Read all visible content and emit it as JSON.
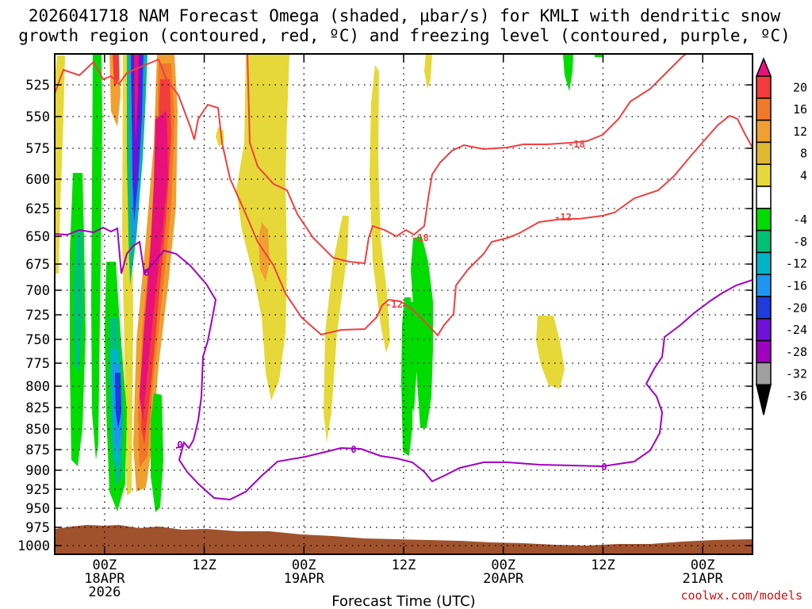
{
  "chart_data": {
    "type": "heatmap",
    "title_line1": "2026041718 NAM Forecast Omega (shaded, μbar/s) for KMLI with dendritic snow",
    "title_line2": "growth region (contoured, red, ºC) and freezing level (contoured, purple, ºC)",
    "xlabel": "Forecast Time (UTC)",
    "credit": "coolwx.com/models",
    "y_axis": {
      "reversed": true,
      "ticks": [
        525,
        550,
        575,
        600,
        625,
        650,
        675,
        700,
        725,
        750,
        775,
        800,
        825,
        850,
        875,
        900,
        925,
        950,
        975,
        1000
      ]
    },
    "x_ticks": [
      {
        "hour": 0,
        "line1": "00Z",
        "line2": "18APR",
        "line3": "2026"
      },
      {
        "hour": 12,
        "line1": "12Z",
        "line2": "",
        "line3": ""
      },
      {
        "hour": 24,
        "line1": "00Z",
        "line2": "19APR",
        "line3": ""
      },
      {
        "hour": 36,
        "line1": "12Z",
        "line2": "",
        "line3": ""
      },
      {
        "hour": 48,
        "line1": "00Z",
        "line2": "20APR",
        "line3": ""
      },
      {
        "hour": 60,
        "line1": "12Z",
        "line2": "",
        "line3": ""
      },
      {
        "hour": 72,
        "line1": "00Z",
        "line2": "21APR",
        "line3": ""
      }
    ],
    "x_range_hours": [
      -6,
      78
    ],
    "grid": "dotted",
    "colorbar": {
      "labels": [
        "20",
        "16",
        "12",
        "8",
        "4",
        "-4",
        "-8",
        "-12",
        "-16",
        "-20",
        "-24",
        "-28",
        "-32",
        "-36"
      ],
      "colors": [
        "#e8107a",
        "#f03c3c",
        "#f07828",
        "#f0a030",
        "#e0b830",
        "#e6d838",
        "#ffffff",
        "#00dc00",
        "#00c078",
        "#00b4c8",
        "#1e96f0",
        "#1e3cdc",
        "#7010d8",
        "#a000c0",
        "#a0a0a0",
        "#000000"
      ]
    },
    "contour_labels": [
      {
        "text": "-18",
        "color": "#f04040"
      },
      {
        "text": "-18",
        "color": "#f04040"
      },
      {
        "text": "-12",
        "color": "#f04040"
      },
      {
        "text": "-12",
        "color": "#f04040"
      },
      {
        "text": "0",
        "color": "#a000c0"
      },
      {
        "text": "0",
        "color": "#a000c0"
      },
      {
        "text": "0",
        "color": "#a000c0"
      },
      {
        "text": "0",
        "color": "#a000c0"
      }
    ]
  }
}
